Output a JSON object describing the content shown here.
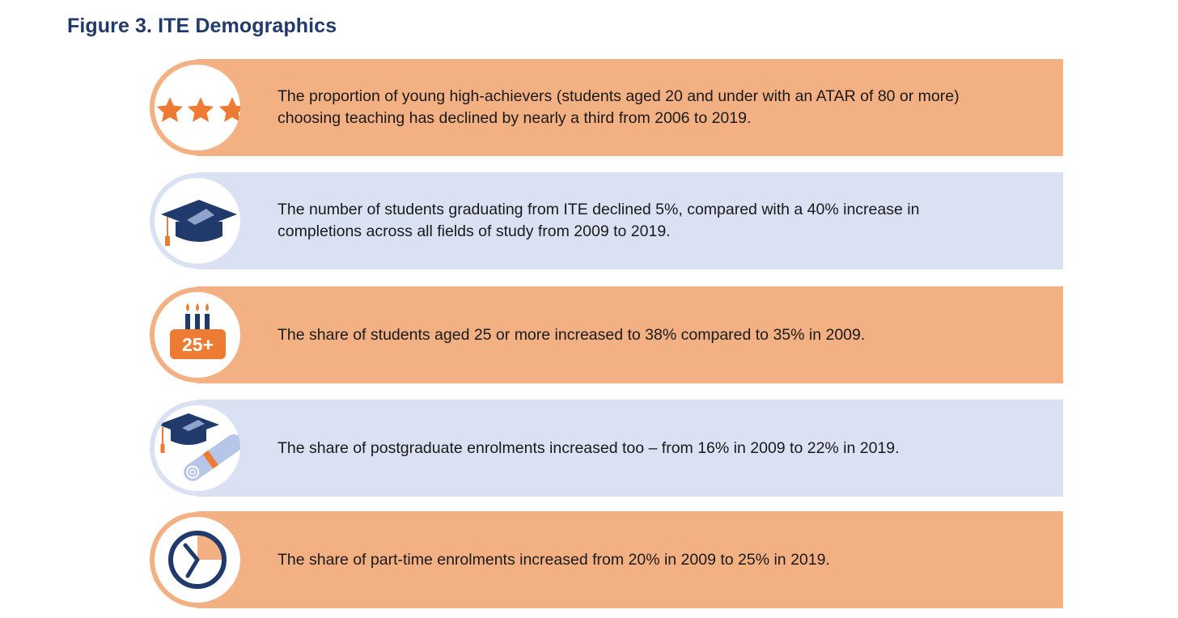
{
  "title": "Figure 3. ITE Demographics",
  "colors": {
    "title": "#1f3a6b",
    "orange_band": "#f2b083",
    "blue_band": "#d9e1f3",
    "accent_orange": "#ee7b34",
    "navy": "#1f3a6b"
  },
  "rows": [
    {
      "icon": "three-stars-icon",
      "theme": "orange",
      "text": "The proportion of young high-achievers (students aged 20 and under with an ATAR of 80 or more) choosing teaching has declined by nearly a third from 2006 to 2019."
    },
    {
      "icon": "graduation-cap-icon",
      "theme": "blue",
      "text": "The number of students graduating from ITE declined 5%, compared with a 40% increase in completions across all fields of study from 2009 to 2019."
    },
    {
      "icon": "birthday-cake-icon",
      "icon_label": "25+",
      "theme": "orange",
      "text": "The share of students aged 25 or more increased to 38% compared to 35% in 2009."
    },
    {
      "icon": "cap-and-diploma-icon",
      "theme": "blue",
      "text": "The share of postgraduate enrolments increased too – from 16% in 2009 to 22% in 2019."
    },
    {
      "icon": "clock-icon",
      "theme": "orange",
      "text": "The share of part-time enrolments increased from 20% in 2009 to 25% in 2019."
    }
  ]
}
